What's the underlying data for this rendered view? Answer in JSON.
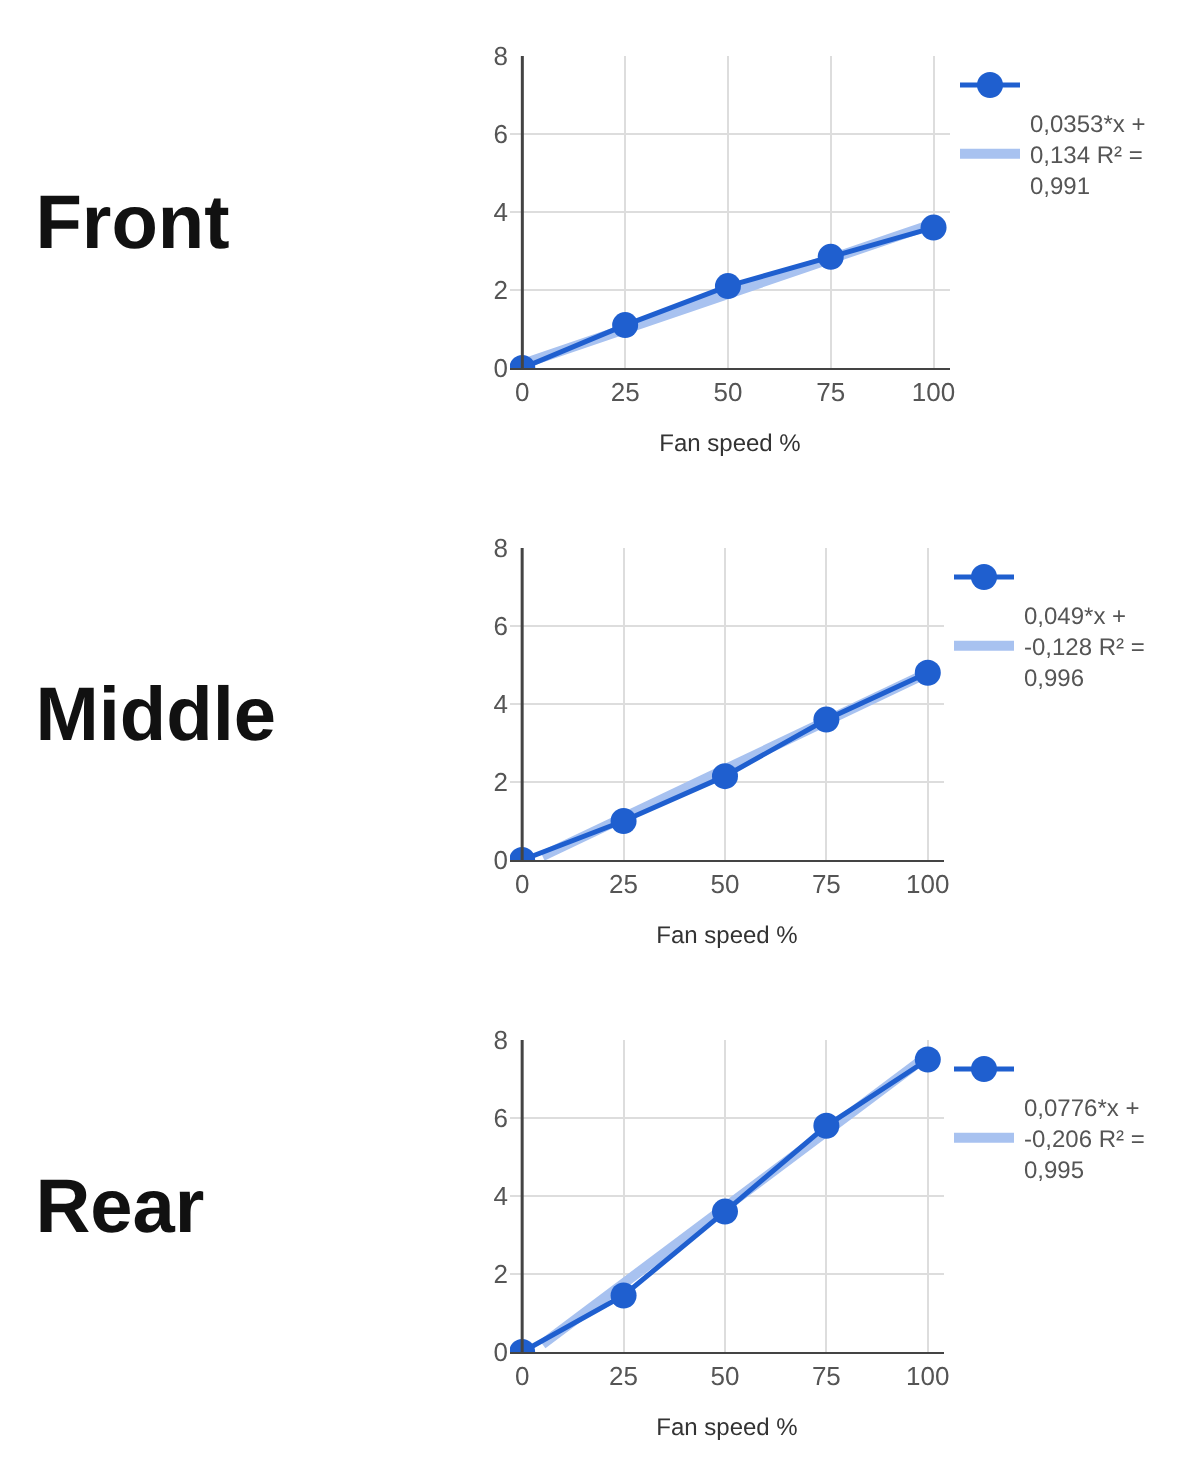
{
  "chart_data": [
    {
      "type": "line",
      "title": "Front",
      "xlabel": "Fan speed %",
      "x": [
        0,
        25,
        50,
        75,
        100
      ],
      "xlim": [
        -3,
        104
      ],
      "xticks": [
        0,
        25,
        50,
        75,
        100
      ],
      "ylim": [
        0,
        8
      ],
      "yticks": [
        0,
        2,
        4,
        6,
        8
      ],
      "grid": true,
      "legend": "right",
      "series": [
        {
          "color": "#1f5fcf",
          "marker": "circle",
          "values": [
            0,
            1.1,
            2.1,
            2.85,
            3.6
          ]
        },
        {
          "name": "0,0353*x + 0,134 R² = 0,991",
          "type": "line",
          "marker": "none",
          "color": "#a8c2f0",
          "x": [
            0,
            100
          ],
          "values": [
            0.1,
            3.7
          ]
        }
      ]
    },
    {
      "type": "line",
      "title": "Middle",
      "xlabel": "Fan speed %",
      "x": [
        0,
        25,
        50,
        75,
        100
      ],
      "xlim": [
        -3,
        104
      ],
      "xticks": [
        0,
        25,
        50,
        75,
        100
      ],
      "ylim": [
        0,
        8
      ],
      "yticks": [
        0,
        2,
        4,
        6,
        8
      ],
      "grid": true,
      "legend": "right",
      "series": [
        {
          "color": "#1f5fcf",
          "marker": "circle",
          "values": [
            0,
            1.0,
            2.15,
            3.6,
            4.8
          ]
        },
        {
          "name": "0,049*x + -0,128 R² = 0,996",
          "type": "line",
          "marker": "none",
          "color": "#a8c2f0",
          "x": [
            5,
            100
          ],
          "values": [
            0.1,
            4.8
          ]
        }
      ]
    },
    {
      "type": "line",
      "title": "Rear",
      "xlabel": "Fan speed %",
      "x": [
        0,
        25,
        50,
        75,
        100
      ],
      "xlim": [
        -3,
        104
      ],
      "xticks": [
        0,
        25,
        50,
        75,
        100
      ],
      "ylim": [
        0,
        8
      ],
      "yticks": [
        0,
        2,
        4,
        6,
        8
      ],
      "grid": true,
      "legend": "right",
      "series": [
        {
          "color": "#1f5fcf",
          "marker": "circle",
          "values": [
            0,
            1.45,
            3.6,
            5.8,
            7.5
          ]
        },
        {
          "name": "0,0776*x + -0,206 R² = 0,995",
          "type": "line",
          "marker": "none",
          "color": "#a8c2f0",
          "x": [
            5,
            100
          ],
          "values": [
            0.2,
            7.6
          ]
        }
      ]
    }
  ]
}
